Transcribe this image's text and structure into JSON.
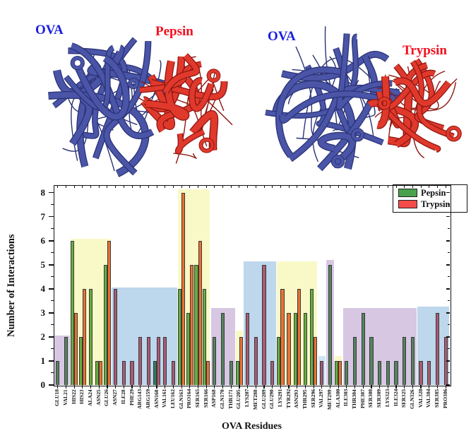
{
  "panels": {
    "left": {
      "protein_label": "OVA",
      "enzyme_label": "Pepsin"
    },
    "right": {
      "protein_label": "OVA",
      "enzyme_label": "Trypsin"
    }
  },
  "colors": {
    "ova_ribbon": "#4a55a8",
    "ova_ribbon_dark": "#2b3376",
    "enzyme_ribbon": "#e0392c",
    "enzyme_ribbon_dark": "#8f1712",
    "ova_label_text": "#1a1ee0",
    "enzyme_label_text": "#f50f1e",
    "axis_text": "#111111",
    "bar_edge": "#3a3a3a",
    "region_yellow": "#f9f9c8",
    "region_blue": "#bdd7ec",
    "region_lightblue": "#cfe4f4",
    "region_purple": "#d7c7e3",
    "pepsin_on_yellow": "#64ae3d",
    "pepsin_on_purple": "#55835e",
    "pepsin_on_blue": "#35795a",
    "pepsin_on_lightblue": "#35795a",
    "trypsin_on_yellow": "#ec7130",
    "trypsin_on_purple": "#b06078",
    "trypsin_on_blue": "#aa5a72",
    "trypsin_on_lightblue": "#a45a70"
  },
  "chart_data": {
    "type": "bar",
    "title": "",
    "xlabel": "OVA Residues",
    "ylabel": "Number of Interactions",
    "ylim": [
      0,
      8.32
    ],
    "yticks": [
      0,
      1,
      2,
      3,
      4,
      5,
      6,
      7,
      8
    ],
    "legend_position": "upper right",
    "grid": false,
    "legend": [
      {
        "label": "Pepsin",
        "color": "#48a24c"
      },
      {
        "label": "Trypsin",
        "color": "#f44c4a"
      }
    ],
    "categories": [
      "GLU18",
      "VAL21",
      "HIS22",
      "HIS23",
      "ALA24",
      "ASN25",
      "GLU26",
      "ASN27",
      "ILE28",
      "PHE29",
      "ARG143",
      "ARG159",
      "ASN160",
      "VAL161",
      "LEU162",
      "GLN163",
      "PRO164",
      "SER165",
      "SER166",
      "ASP168",
      "GLN170",
      "THR171",
      "GLU205",
      "LYS207",
      "MET288",
      "GLU289",
      "GLU290",
      "LYS291",
      "TYR292",
      "ASN293",
      "THR295",
      "SER296",
      "VAL297",
      "MET299",
      "ALA300",
      "ILE303",
      "THR304",
      "PHE307",
      "SER308",
      "SER309",
      "LYS323",
      "ILE324",
      "SER325",
      "GLN326",
      "VAL328",
      "VAL384",
      "SER385",
      "PRO386"
    ],
    "series": [
      {
        "name": "Pepsin",
        "values": [
          1,
          2,
          6,
          2,
          4,
          1,
          5,
          null,
          null,
          null,
          null,
          null,
          1,
          null,
          null,
          4,
          3,
          5,
          4,
          2,
          3,
          1,
          1,
          null,
          null,
          null,
          null,
          2,
          null,
          3,
          3,
          4,
          null,
          5,
          1,
          1,
          2,
          3,
          2,
          1,
          1,
          1,
          2,
          2,
          null,
          null,
          null,
          null
        ]
      },
      {
        "name": "Trypsin",
        "values": [
          null,
          null,
          3,
          4,
          null,
          1,
          6,
          4,
          1,
          1,
          2,
          2,
          2,
          2,
          1,
          8,
          5,
          6,
          1,
          null,
          null,
          null,
          2,
          3,
          2,
          5,
          1,
          4,
          3,
          4,
          null,
          2,
          1,
          null,
          1,
          null,
          null,
          null,
          null,
          null,
          null,
          null,
          null,
          null,
          1,
          1,
          3,
          2
        ]
      }
    ],
    "regions": [
      {
        "start": 0,
        "end": 1,
        "color": "purple",
        "height": 2.05
      },
      {
        "start": 2,
        "end": 6,
        "color": "yellow",
        "height": 6.1
      },
      {
        "start": 7,
        "end": 14,
        "color": "blue",
        "height": 4.05
      },
      {
        "start": 15,
        "end": 18,
        "color": "yellow",
        "height": 8.15
      },
      {
        "start": 19,
        "end": 21,
        "color": "purple",
        "height": 3.2
      },
      {
        "start": 22,
        "end": 22,
        "color": "yellow",
        "height": 2.25
      },
      {
        "start": 23,
        "end": 26,
        "color": "blue",
        "height": 5.15
      },
      {
        "start": 27,
        "end": 31,
        "color": "yellow",
        "height": 5.15
      },
      {
        "start": 32,
        "end": 32,
        "color": "lightblue",
        "height": 1.2
      },
      {
        "start": 33,
        "end": 33,
        "color": "purple",
        "height": 5.2
      },
      {
        "start": 34,
        "end": 34,
        "color": "yellow",
        "height": 1.2
      },
      {
        "start": 35,
        "end": 43,
        "color": "purple",
        "height": 3.2
      },
      {
        "start": 44,
        "end": 47,
        "color": "blue",
        "height": 3.25
      }
    ]
  }
}
